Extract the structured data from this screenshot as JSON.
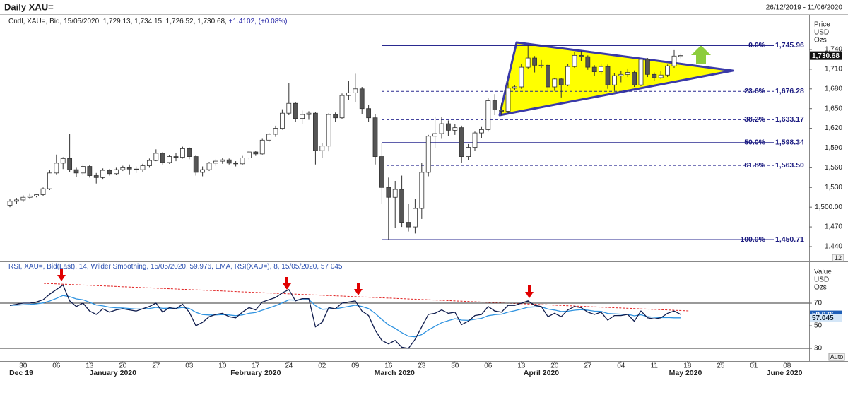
{
  "header": {
    "title": "Daily XAU=",
    "date_range": "26/12/2019 - 11/06/2020"
  },
  "footer": {
    "auto": "Auto"
  },
  "chart_data": [
    {
      "type": "candlestick",
      "legend_text": "Cndl, XAU=, Bid, 15/05/2020, 1,729.13, 1,734.15, 1,726.52, 1,730.68,",
      "legend_change": "+1.4102, (+0.08%)",
      "axis_label": [
        "Price",
        "USD",
        "Ozs"
      ],
      "up_color": "#ffffff",
      "down_color": "#555555",
      "xlim": [
        -0.96,
        120.32
      ],
      "ylim": [
        1417.4,
        1791.6
      ],
      "yticks": [
        {
          "value": 1440,
          "label": "1,440"
        },
        {
          "value": 1470,
          "label": "1,470"
        },
        {
          "value": 1500,
          "label": "1,500.00"
        },
        {
          "value": 1530,
          "label": "1,530"
        },
        {
          "value": 1560,
          "label": "1,560"
        },
        {
          "value": 1590,
          "label": "1,590"
        },
        {
          "value": 1620,
          "label": "1,620"
        },
        {
          "value": 1650,
          "label": "1,650"
        },
        {
          "value": 1680,
          "label": "1,680"
        },
        {
          "value": 1710,
          "label": "1,710"
        },
        {
          "value": 1740,
          "label": "1,740"
        }
      ],
      "last_price_label": "1,730.68",
      "scale_box": "12",
      "fib_levels": [
        {
          "pct": "0.0%",
          "label": "1,745.96",
          "value": 1745.96,
          "dashed": false
        },
        {
          "pct": "23.6%",
          "label": "1,676.28",
          "value": 1676.28,
          "dashed": true
        },
        {
          "pct": "38.2%",
          "label": "1,633.17",
          "value": 1633.17,
          "dashed": true
        },
        {
          "pct": "50.0%",
          "label": "1,598.34",
          "value": 1598.34,
          "dashed": false
        },
        {
          "pct": "61.8%",
          "label": "1,563.50",
          "value": 1563.5,
          "dashed": true
        },
        {
          "pct": "100.0%",
          "label": "1,450.71",
          "value": 1450.71,
          "dashed": false
        }
      ],
      "candles": [
        [
          1503,
          1512,
          1500,
          1509
        ],
        [
          1509,
          1514,
          1505,
          1511
        ],
        [
          1511,
          1518,
          1508,
          1515
        ],
        [
          1515,
          1521,
          1513,
          1517
        ],
        [
          1517,
          1520,
          1515,
          1519
        ],
        [
          1519,
          1530,
          1517,
          1528
        ],
        [
          1528,
          1556,
          1526,
          1552
        ],
        [
          1552,
          1580,
          1550,
          1567
        ],
        [
          1567,
          1576,
          1558,
          1574
        ],
        [
          1574,
          1611,
          1553,
          1557
        ],
        [
          1557,
          1560,
          1546,
          1552
        ],
        [
          1552,
          1565,
          1549,
          1562
        ],
        [
          1562,
          1564,
          1545,
          1548
        ],
        [
          1548,
          1552,
          1536,
          1545
        ],
        [
          1545,
          1559,
          1542,
          1556
        ],
        [
          1556,
          1558,
          1548,
          1551
        ],
        [
          1551,
          1560,
          1549,
          1557
        ],
        [
          1557,
          1563,
          1555,
          1560
        ],
        [
          1560,
          1565,
          1550,
          1558
        ],
        [
          1558,
          1562,
          1552,
          1557
        ],
        [
          1557,
          1566,
          1554,
          1563
        ],
        [
          1563,
          1574,
          1560,
          1571
        ],
        [
          1571,
          1588,
          1570,
          1582
        ],
        [
          1582,
          1584,
          1565,
          1568
        ],
        [
          1568,
          1579,
          1566,
          1577
        ],
        [
          1577,
          1583,
          1570,
          1576
        ],
        [
          1576,
          1592,
          1574,
          1589
        ],
        [
          1589,
          1591,
          1573,
          1577
        ],
        [
          1577,
          1579,
          1548,
          1553
        ],
        [
          1553,
          1562,
          1547,
          1557
        ],
        [
          1557,
          1569,
          1555,
          1567
        ],
        [
          1567,
          1573,
          1563,
          1570
        ],
        [
          1570,
          1575,
          1566,
          1572
        ],
        [
          1572,
          1574,
          1565,
          1567
        ],
        [
          1567,
          1570,
          1562,
          1566
        ],
        [
          1566,
          1578,
          1564,
          1575
        ],
        [
          1575,
          1586,
          1573,
          1584
        ],
        [
          1584,
          1586,
          1578,
          1581
        ],
        [
          1581,
          1604,
          1580,
          1602
        ],
        [
          1602,
          1613,
          1599,
          1611
        ],
        [
          1611,
          1624,
          1607,
          1620
        ],
        [
          1620,
          1649,
          1618,
          1643
        ],
        [
          1643,
          1689,
          1640,
          1658
        ],
        [
          1658,
          1660,
          1630,
          1635
        ],
        [
          1635,
          1647,
          1627,
          1641
        ],
        [
          1641,
          1646,
          1633,
          1643
        ],
        [
          1643,
          1645,
          1565,
          1586
        ],
        [
          1586,
          1598,
          1575,
          1593
        ],
        [
          1593,
          1643,
          1585,
          1641
        ],
        [
          1641,
          1644,
          1630,
          1636
        ],
        [
          1636,
          1673,
          1634,
          1670
        ],
        [
          1670,
          1692,
          1663,
          1674
        ],
        [
          1674,
          1703,
          1660,
          1680
        ],
        [
          1680,
          1683,
          1642,
          1650
        ],
        [
          1650,
          1656,
          1630,
          1636
        ],
        [
          1636,
          1642,
          1565,
          1577
        ],
        [
          1577,
          1597,
          1505,
          1530
        ],
        [
          1530,
          1545,
          1451,
          1515
        ],
        [
          1515,
          1540,
          1468,
          1527
        ],
        [
          1527,
          1548,
          1470,
          1477
        ],
        [
          1477,
          1505,
          1463,
          1470
        ],
        [
          1470,
          1513,
          1460,
          1498
        ],
        [
          1498,
          1567,
          1482,
          1553
        ],
        [
          1553,
          1610,
          1547,
          1608
        ],
        [
          1608,
          1638,
          1590,
          1612
        ],
        [
          1612,
          1637,
          1604,
          1627
        ],
        [
          1627,
          1632,
          1608,
          1617
        ],
        [
          1617,
          1627,
          1610,
          1621
        ],
        [
          1621,
          1624,
          1568,
          1577
        ],
        [
          1577,
          1596,
          1572,
          1591
        ],
        [
          1591,
          1615,
          1586,
          1613
        ],
        [
          1613,
          1622,
          1605,
          1618
        ],
        [
          1618,
          1666,
          1615,
          1662
        ],
        [
          1662,
          1672,
          1640,
          1648
        ],
        [
          1648,
          1658,
          1640,
          1646
        ],
        [
          1646,
          1690,
          1643,
          1681
        ],
        [
          1681,
          1686,
          1678,
          1683
        ],
        [
          1683,
          1718,
          1680,
          1713
        ],
        [
          1713,
          1747,
          1710,
          1727
        ],
        [
          1727,
          1730,
          1705,
          1716
        ],
        [
          1716,
          1724,
          1712,
          1716
        ],
        [
          1716,
          1718,
          1677,
          1683
        ],
        [
          1683,
          1697,
          1677,
          1695
        ],
        [
          1695,
          1697,
          1667,
          1686
        ],
        [
          1686,
          1718,
          1684,
          1714
        ],
        [
          1714,
          1736,
          1712,
          1731
        ],
        [
          1731,
          1738,
          1722,
          1729
        ],
        [
          1729,
          1731,
          1709,
          1713
        ],
        [
          1713,
          1716,
          1700,
          1706
        ],
        [
          1706,
          1718,
          1702,
          1714
        ],
        [
          1714,
          1717,
          1680,
          1686
        ],
        [
          1686,
          1704,
          1677,
          1700
        ],
        [
          1700,
          1707,
          1690,
          1702
        ],
        [
          1702,
          1711,
          1698,
          1705
        ],
        [
          1705,
          1708,
          1683,
          1686
        ],
        [
          1686,
          1726,
          1684,
          1725
        ],
        [
          1725,
          1727,
          1698,
          1702
        ],
        [
          1702,
          1705,
          1692,
          1697
        ],
        [
          1697,
          1707,
          1695,
          1701
        ],
        [
          1701,
          1717,
          1698,
          1715
        ],
        [
          1715,
          1739,
          1712,
          1730
        ],
        [
          1729.13,
          1734.15,
          1726.52,
          1730.68
        ]
      ]
    },
    {
      "type": "line",
      "legend_mid": ", XAU=, Bid(Last), 14, Wilder Smoothing, 15/05/2020, 59.976, ",
      "legend_end": ", RSI(XAU=), 8, 15/05/2020, 57 045",
      "axis_label": [
        "Value",
        "USD",
        "Ozs"
      ],
      "xlim": [
        -0.96,
        120.32
      ],
      "ylim": [
        19.4,
        101.9
      ],
      "yticks": [
        30,
        50,
        70
      ],
      "levels": [
        30,
        70
      ],
      "xticks": [
        {
          "value": 2,
          "label": "30"
        },
        {
          "value": 7,
          "label": "06"
        },
        {
          "value": 12,
          "label": "13"
        },
        {
          "value": 17,
          "label": "20"
        },
        {
          "value": 22,
          "label": "27"
        },
        {
          "value": 27,
          "label": "03"
        },
        {
          "value": 32,
          "label": "10"
        },
        {
          "value": 37,
          "label": "17"
        },
        {
          "value": 42,
          "label": "24"
        },
        {
          "value": 47,
          "label": "02"
        },
        {
          "value": 52,
          "label": "09"
        },
        {
          "value": 57,
          "label": "16"
        },
        {
          "value": 62,
          "label": "23"
        },
        {
          "value": 67,
          "label": "30"
        },
        {
          "value": 72,
          "label": "06"
        },
        {
          "value": 77,
          "label": "13"
        },
        {
          "value": 82,
          "label": "20"
        },
        {
          "value": 87,
          "label": "27"
        },
        {
          "value": 92,
          "label": "04"
        },
        {
          "value": 97,
          "label": "11"
        },
        {
          "value": 102,
          "label": "18"
        },
        {
          "value": 107,
          "label": "25"
        },
        {
          "value": 112,
          "label": "01"
        },
        {
          "value": 117,
          "label": "08"
        }
      ],
      "month_labels": [
        {
          "value": 1.7,
          "label": "Dec 19"
        },
        {
          "value": 15.5,
          "label": "January 2020"
        },
        {
          "value": 37,
          "label": "February 2020"
        },
        {
          "value": 57.9,
          "label": "March 2020"
        },
        {
          "value": 80,
          "label": "April 2020"
        },
        {
          "value": 101.7,
          "label": "May 2020"
        },
        {
          "value": 116.6,
          "label": "June 2020"
        }
      ],
      "series": [
        {
          "name": "RSI",
          "color": "#0f1c4d",
          "box_color": "#1f5fb8",
          "last_label": "59.976",
          "values": [
            68,
            69,
            70,
            70,
            71,
            73,
            78,
            82,
            86,
            72,
            67,
            70,
            63,
            60,
            65,
            62,
            64,
            65,
            64,
            63,
            65,
            67,
            70,
            62,
            66,
            65,
            69,
            62,
            50,
            53,
            58,
            60,
            61,
            58,
            57,
            62,
            66,
            64,
            71,
            73,
            75,
            79,
            82,
            72,
            74,
            74,
            49,
            53,
            66,
            65,
            70,
            71,
            72,
            63,
            59,
            46,
            37,
            34,
            37,
            31,
            30,
            38,
            49,
            60,
            61,
            64,
            61,
            62,
            51,
            54,
            59,
            60,
            67,
            63,
            62,
            68,
            68,
            70,
            72,
            68,
            67,
            58,
            61,
            58,
            64,
            67,
            66,
            62,
            60,
            62,
            55,
            59,
            59,
            60,
            54,
            63,
            57,
            56,
            57,
            61,
            63,
            59.976
          ]
        },
        {
          "name": "EMA",
          "color": "#2f93e0",
          "box_color": "#d4e6f7",
          "last_label": "57.045",
          "values": [
            68,
            68.2,
            68.6,
            68.9,
            69.4,
            70.2,
            71.9,
            74.2,
            76.8,
            75.7,
            73.8,
            73.0,
            70.7,
            68.4,
            67.6,
            66.4,
            65.9,
            65.7,
            65.3,
            64.8,
            64.8,
            65.3,
            66.3,
            65.4,
            65.5,
            65.4,
            66.2,
            65.3,
            61.9,
            59.9,
            59.5,
            59.6,
            59.9,
            59.5,
            58.9,
            59.6,
            61.0,
            61.7,
            63.8,
            65.8,
            67.8,
            70.3,
            72.9,
            72.7,
            73.0,
            73.2,
            67.8,
            64.5,
            64.9,
            64.9,
            66.0,
            67.1,
            68.2,
            67.0,
            65.2,
            60.9,
            55.6,
            50.8,
            47.7,
            43.9,
            40.8,
            40.2,
            42.2,
            46.2,
            49.5,
            52.7,
            54.5,
            56.2,
            55.0,
            54.8,
            55.7,
            56.6,
            58.9,
            59.8,
            60.3,
            62.0,
            63.3,
            64.8,
            66.4,
            66.7,
            66.8,
            64.8,
            63.9,
            62.6,
            62.9,
            63.8,
            64.3,
            63.8,
            62.9,
            62.7,
            60.9,
            60.5,
            60.2,
            60.2,
            58.8,
            59.7,
            58.0,
            57.5,
            57.2,
            57.3,
            57.0,
            57.045
          ]
        }
      ]
    }
  ]
}
